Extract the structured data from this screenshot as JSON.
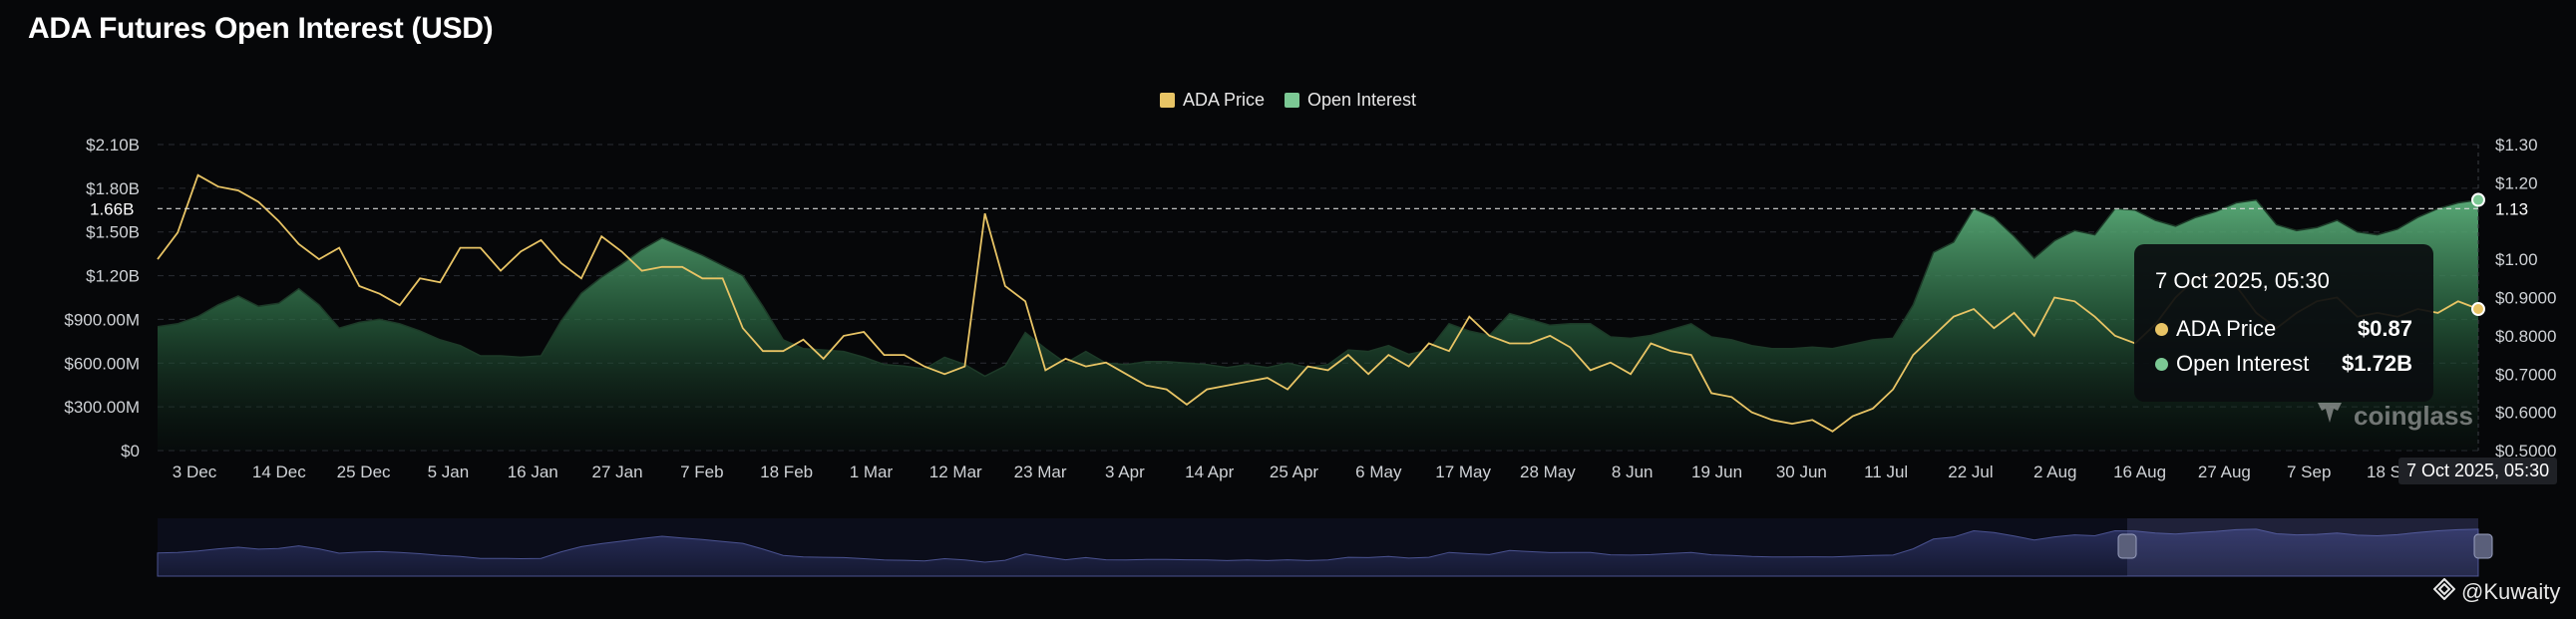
{
  "chart_data": {
    "type": "area",
    "title": "ADA Futures Open Interest (USD)",
    "x_tick_labels": [
      "3 Dec",
      "14 Dec",
      "25 Dec",
      "5 Jan",
      "16 Jan",
      "27 Jan",
      "7 Feb",
      "18 Feb",
      "1 Mar",
      "12 Mar",
      "23 Mar",
      "3 Apr",
      "14 Apr",
      "25 Apr",
      "6 May",
      "17 May",
      "28 May",
      "8 Jun",
      "19 Jun",
      "30 Jun",
      "11 Jul",
      "22 Jul",
      "2 Aug",
      "16 Aug",
      "27 Aug",
      "7 Sep",
      "18 Sep",
      "7 Oct 2025, 05:30"
    ],
    "y_left_ticks": [
      "$0",
      "$300.00M",
      "$600.00M",
      "$900.00M",
      "$1.20B",
      "$1.50B",
      "$1.80B",
      "$2.10B"
    ],
    "y_right_ticks": [
      "$0.5000",
      "$0.6000",
      "$0.7000",
      "$0.8000",
      "$0.9000",
      "$1.00",
      "$1.20",
      "$1.30"
    ],
    "y_left_range": [
      0,
      2100000000
    ],
    "y_right_range": [
      0.5,
      1.3
    ],
    "crosshair_left_label": "1.66B",
    "crosshair_right_label": "1.13",
    "legend_position": "top-center",
    "grid": true,
    "series": [
      {
        "name": "ADA Price",
        "color": "#e8c465",
        "axis": "right",
        "values": [
          1.0,
          1.07,
          1.22,
          1.19,
          1.18,
          1.15,
          1.1,
          1.04,
          1.0,
          1.03,
          0.93,
          0.91,
          0.88,
          0.95,
          0.94,
          1.03,
          1.03,
          0.97,
          1.02,
          1.05,
          0.99,
          0.95,
          1.06,
          1.02,
          0.97,
          0.98,
          0.98,
          0.95,
          0.95,
          0.82,
          0.76,
          0.76,
          0.79,
          0.74,
          0.8,
          0.81,
          0.75,
          0.75,
          0.72,
          0.7,
          0.72,
          1.12,
          0.93,
          0.89,
          0.71,
          0.74,
          0.72,
          0.73,
          0.7,
          0.67,
          0.66,
          0.62,
          0.66,
          0.67,
          0.68,
          0.69,
          0.66,
          0.72,
          0.71,
          0.75,
          0.7,
          0.75,
          0.72,
          0.78,
          0.76,
          0.85,
          0.8,
          0.78,
          0.78,
          0.8,
          0.77,
          0.71,
          0.73,
          0.7,
          0.78,
          0.76,
          0.75,
          0.65,
          0.64,
          0.6,
          0.58,
          0.57,
          0.58,
          0.55,
          0.59,
          0.61,
          0.66,
          0.75,
          0.8,
          0.85,
          0.87,
          0.82,
          0.86,
          0.8,
          0.9,
          0.89,
          0.85,
          0.8,
          0.78,
          0.83,
          0.9,
          0.95,
          0.96,
          0.93,
          0.86,
          0.82,
          0.86,
          0.89,
          0.9,
          0.85,
          0.86,
          0.85,
          0.87,
          0.86,
          0.89,
          0.87
        ]
      },
      {
        "name": "Open Interest",
        "color": "#7bc894",
        "axis": "left",
        "values": [
          850,
          870,
          920,
          1000,
          1060,
          990,
          1010,
          1110,
          1000,
          840,
          880,
          900,
          870,
          820,
          760,
          720,
          650,
          650,
          640,
          650,
          890,
          1080,
          1190,
          1280,
          1380,
          1460,
          1400,
          1340,
          1270,
          1200,
          990,
          760,
          700,
          690,
          680,
          640,
          590,
          580,
          560,
          640,
          590,
          510,
          580,
          810,
          700,
          600,
          680,
          600,
          590,
          610,
          610,
          600,
          590,
          570,
          590,
          570,
          600,
          570,
          590,
          690,
          680,
          720,
          660,
          690,
          870,
          820,
          790,
          940,
          900,
          860,
          870,
          870,
          780,
          770,
          790,
          830,
          870,
          780,
          760,
          720,
          700,
          700,
          710,
          700,
          730,
          760,
          770,
          1000,
          1360,
          1430,
          1660,
          1600,
          1470,
          1320,
          1440,
          1510,
          1480,
          1660,
          1650,
          1580,
          1540,
          1600,
          1640,
          1700,
          1720,
          1550,
          1510,
          1530,
          1580,
          1500,
          1480,
          1520,
          1600,
          1660,
          1700,
          1720
        ]
      }
    ]
  },
  "legend": [
    {
      "label": "ADA Price",
      "color": "#e8c465"
    },
    {
      "label": "Open Interest",
      "color": "#7bc894"
    }
  ],
  "tooltip": {
    "date": "7 Oct 2025, 05:30",
    "rows": [
      {
        "label": "ADA Price",
        "value": "$0.87",
        "color": "#e8c465"
      },
      {
        "label": "Open Interest",
        "value": "$1.72B",
        "color": "#7bc894"
      }
    ]
  },
  "watermark": "coinglass",
  "credit": "@Kuwaity",
  "colors": {
    "background": "#060709",
    "accent_green": "#7bc894",
    "accent_yellow": "#e8c465",
    "navigator": "#1a1e35"
  }
}
